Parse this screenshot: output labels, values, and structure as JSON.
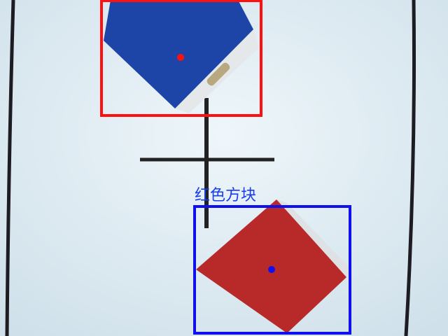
{
  "label": "红色方块"
}
